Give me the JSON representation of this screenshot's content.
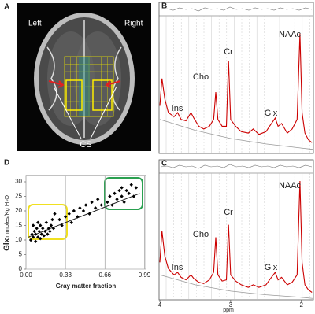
{
  "image_panel": {
    "label": "A",
    "left": "Left",
    "right": "Right",
    "cs": "CS"
  },
  "chart_data": [
    {
      "type": "line",
      "panel_label": "B",
      "annotations": [
        "NAAc",
        "Cr",
        "Cho",
        "Ins",
        "Glx"
      ],
      "xlim": [
        4,
        1.83
      ],
      "ylim": [
        0,
        1
      ],
      "series": [
        {
          "color": "#cc0000",
          "x": [
            4.0,
            3.97,
            3.93,
            3.88,
            3.8,
            3.75,
            3.7,
            3.63,
            3.56,
            3.52,
            3.45,
            3.38,
            3.3,
            3.24,
            3.21,
            3.18,
            3.12,
            3.06,
            3.03,
            3.0,
            2.93,
            2.85,
            2.75,
            2.68,
            2.6,
            2.5,
            2.45,
            2.37,
            2.33,
            2.28,
            2.2,
            2.13,
            2.06,
            2.02,
            1.99,
            1.95,
            1.9,
            1.85
          ],
          "values": [
            0.35,
            0.55,
            0.4,
            0.3,
            0.27,
            0.3,
            0.25,
            0.24,
            0.3,
            0.26,
            0.2,
            0.18,
            0.2,
            0.25,
            0.45,
            0.25,
            0.2,
            0.2,
            0.68,
            0.25,
            0.2,
            0.16,
            0.15,
            0.18,
            0.14,
            0.16,
            0.2,
            0.26,
            0.2,
            0.22,
            0.15,
            0.18,
            0.25,
            0.88,
            0.3,
            0.15,
            0.1,
            0.08
          ]
        },
        {
          "color": "#999999",
          "x": [
            4,
            3.5,
            3,
            2.5,
            2,
            1.83
          ],
          "values": [
            0.25,
            0.17,
            0.11,
            0.07,
            0.04,
            0.03
          ]
        }
      ]
    },
    {
      "type": "line",
      "panel_label": "C",
      "annotations": [
        "NAAc",
        "Cr",
        "Cho",
        "Ins",
        "Glx"
      ],
      "xlabel": "ppm",
      "xlim": [
        4,
        1.83
      ],
      "ylim": [
        0,
        1
      ],
      "xticks": [
        4,
        3,
        2
      ],
      "series": [
        {
          "color": "#cc0000",
          "x": [
            4.0,
            3.97,
            3.93,
            3.88,
            3.8,
            3.75,
            3.7,
            3.63,
            3.56,
            3.52,
            3.45,
            3.38,
            3.3,
            3.24,
            3.21,
            3.18,
            3.12,
            3.06,
            3.03,
            3.0,
            2.93,
            2.85,
            2.75,
            2.68,
            2.6,
            2.5,
            2.45,
            2.37,
            2.33,
            2.28,
            2.2,
            2.13,
            2.06,
            2.02,
            1.99,
            1.95,
            1.9,
            1.85
          ],
          "values": [
            0.3,
            0.55,
            0.35,
            0.25,
            0.2,
            0.22,
            0.18,
            0.16,
            0.2,
            0.17,
            0.14,
            0.13,
            0.16,
            0.22,
            0.5,
            0.2,
            0.15,
            0.16,
            0.6,
            0.2,
            0.15,
            0.12,
            0.1,
            0.12,
            0.1,
            0.12,
            0.16,
            0.22,
            0.16,
            0.18,
            0.12,
            0.14,
            0.2,
            0.95,
            0.3,
            0.12,
            0.08,
            0.06
          ]
        },
        {
          "color": "#999999",
          "x": [
            4,
            3.5,
            3,
            2.5,
            2,
            1.83
          ],
          "values": [
            0.2,
            0.12,
            0.07,
            0.04,
            0.02,
            0.01
          ]
        }
      ]
    },
    {
      "type": "scatter",
      "panel_label": "D",
      "ylabel": "Glx",
      "ylabel_unit": "mmoles/Kg H₂O",
      "xlabel": "Gray matter fraction",
      "color": "#000000",
      "xlim": [
        0,
        1.0
      ],
      "ylim": [
        0,
        32
      ],
      "xticks": [
        {
          "value": 0,
          "label": "0.00"
        },
        0.33,
        0.66,
        0.99
      ],
      "yticks": [
        0,
        5,
        10,
        15,
        20,
        25,
        30
      ],
      "grid": true,
      "x": [
        0.04,
        0.05,
        0.06,
        0.07,
        0.08,
        0.08,
        0.09,
        0.1,
        0.11,
        0.12,
        0.12,
        0.13,
        0.14,
        0.15,
        0.16,
        0.17,
        0.18,
        0.19,
        0.2,
        0.21,
        0.22,
        0.23,
        0.24,
        0.06,
        0.1,
        0.28,
        0.3,
        0.33,
        0.36,
        0.38,
        0.4,
        0.43,
        0.45,
        0.48,
        0.5,
        0.53,
        0.55,
        0.58,
        0.6,
        0.63,
        0.68,
        0.7,
        0.72,
        0.74,
        0.76,
        0.78,
        0.8,
        0.82,
        0.84,
        0.86,
        0.88,
        0.9,
        0.92,
        0.8
      ],
      "values": [
        10,
        12,
        11,
        13,
        9.5,
        12,
        14,
        11,
        13,
        10.5,
        15,
        12,
        14,
        11.5,
        13,
        16,
        12,
        14,
        13,
        15,
        17,
        14,
        19,
        15,
        16,
        17,
        15,
        18,
        19,
        16,
        20,
        18,
        21,
        20,
        22,
        19,
        23,
        21,
        24,
        22,
        23,
        25,
        22,
        26,
        24,
        27,
        25,
        23,
        27,
        26,
        29,
        25,
        28,
        28
      ],
      "trendline": {
        "x": [
          0.02,
          0.95
        ],
        "y": [
          11,
          26
        ]
      }
    }
  ]
}
